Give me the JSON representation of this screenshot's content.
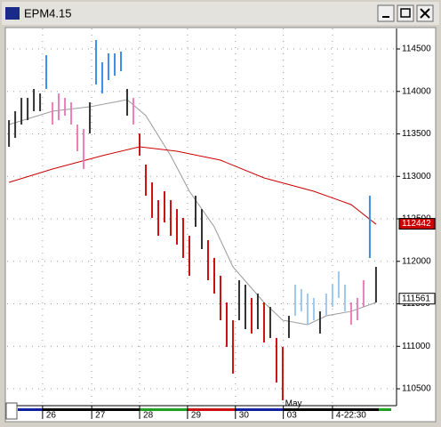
{
  "chart_data": {
    "type": "ohlc",
    "title": "EPM4.15",
    "x": [
      0,
      1,
      2,
      3,
      4,
      5,
      6,
      7,
      8,
      9,
      10,
      11,
      12,
      13,
      14,
      15,
      16,
      17,
      18,
      19,
      20,
      21,
      22,
      23,
      24,
      25,
      26,
      27,
      28,
      29,
      30,
      31,
      32,
      33,
      34,
      35,
      36,
      37,
      38,
      39,
      40,
      41,
      42,
      43,
      44,
      45,
      46,
      47,
      48,
      49,
      50,
      51,
      52,
      53,
      54,
      55,
      56,
      57,
      58,
      59
    ],
    "high": [
      113662,
      113767,
      113924,
      113924,
      114029,
      113976,
      114427,
      113872,
      113976,
      113924,
      113872,
      113610,
      113557,
      113872,
      114605,
      114343,
      114448,
      114448,
      114469,
      114029,
      113924,
      113505,
      113139,
      112930,
      112720,
      112825,
      112720,
      112615,
      112511,
      112301,
      112772,
      112615,
      112249,
      112040,
      111830,
      111516,
      111307,
      111778,
      111725,
      111569,
      111621,
      111516,
      111464,
      111098,
      110993,
      111359,
      111725,
      111673,
      111621,
      111569,
      111412,
      111621,
      111725,
      111882,
      111725,
      111516,
      111569,
      111778,
      112772,
      111935
    ],
    "low": [
      113348,
      113453,
      113610,
      113662,
      113767,
      113767,
      114029,
      113610,
      113662,
      113715,
      113610,
      113296,
      113087,
      113505,
      114081,
      113976,
      114134,
      114186,
      114238,
      113715,
      113610,
      113243,
      112772,
      112511,
      112301,
      112458,
      112301,
      112197,
      112040,
      111830,
      112406,
      112144,
      111778,
      111621,
      111307,
      110993,
      110679,
      111307,
      111202,
      111150,
      111202,
      111045,
      111098,
      110574,
      110365,
      111098,
      111359,
      111412,
      111255,
      111307,
      111150,
      111359,
      111464,
      111569,
      111412,
      111255,
      111307,
      111464,
      112040,
      111516
    ],
    "bar_colors": [
      "#333333",
      "#333333",
      "#333333",
      "#333333",
      "#333333",
      "#333333",
      "#3a8ee6",
      "#e87fb8",
      "#e87fb8",
      "#e87fb8",
      "#e87fb8",
      "#e87fb8",
      "#e87fb8",
      "#333333",
      "#3a8ee6",
      "#3a8ee6",
      "#3a8ee6",
      "#3a8ee6",
      "#3a8ee6",
      "#333333",
      "#e87fb8",
      "#cc1111",
      "#cc1111",
      "#cc1111",
      "#cc1111",
      "#cc1111",
      "#cc1111",
      "#cc1111",
      "#cc1111",
      "#cc1111",
      "#333333",
      "#333333",
      "#cc1111",
      "#cc1111",
      "#cc1111",
      "#cc1111",
      "#cc1111",
      "#333333",
      "#333333",
      "#cc1111",
      "#333333",
      "#cc1111",
      "#333333",
      "#cc1111",
      "#cc1111",
      "#333333",
      "#9ec8f0",
      "#9ec8f0",
      "#9ec8f0",
      "#9ec8f0",
      "#333333",
      "#9ec8f0",
      "#9ec8f0",
      "#9ec8f0",
      "#9ec8f0",
      "#e87fb8",
      "#e87fb8",
      "#e87fb8",
      "#3a8ee6",
      "#333333"
    ],
    "lines": [
      {
        "color": "#999999",
        "x": [
          0,
          7,
          13,
          19,
          22,
          26,
          29,
          33,
          36,
          41,
          44,
          48,
          51,
          55,
          59
        ],
        "values": [
          113610,
          113767,
          113819,
          113903,
          113715,
          113244,
          112825,
          112406,
          111935,
          111516,
          111307,
          111255,
          111359,
          111412,
          111516
        ]
      },
      {
        "color": "#cc0000",
        "x": [
          0,
          7,
          15,
          21,
          27,
          34,
          41,
          49,
          55,
          59
        ],
        "values": [
          112930,
          113087,
          113244,
          113348,
          113296,
          113191,
          112982,
          112825,
          112668,
          112437
        ]
      }
    ],
    "xlim": [
      -0.3,
      62.3
    ],
    "xticks": [
      {
        "value": 5.4,
        "label": "26"
      },
      {
        "value": 13.3,
        "label": "27"
      },
      {
        "value": 21,
        "label": "28"
      },
      {
        "value": 28.7,
        "label": "29"
      },
      {
        "value": 36.4,
        "label": "30"
      },
      {
        "value": 44.1,
        "label": "03"
      },
      {
        "value": 52,
        "label": "4-22:30"
      }
    ],
    "month_label": "May",
    "ylim": [
      110312,
      114741
    ],
    "yticks": [
      110500,
      111000,
      111500,
      112000,
      112500,
      113000,
      113500,
      114000,
      114500
    ],
    "price_labels": [
      {
        "value": 112442,
        "color": "#cc0000",
        "text_color": "#ffffff"
      },
      {
        "value": 111561,
        "color": "#ffffff",
        "text_color": "#000000"
      }
    ],
    "grid": true
  }
}
